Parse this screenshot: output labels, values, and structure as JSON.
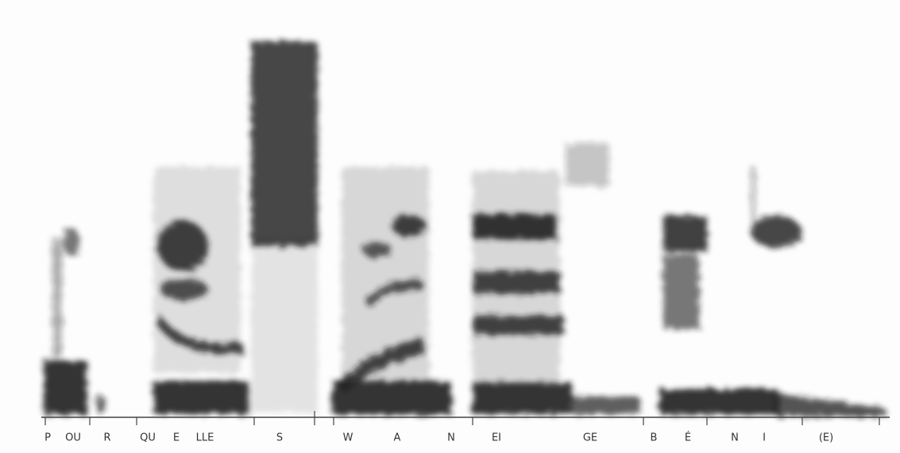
{
  "labels": [
    "P",
    "OU",
    "R",
    "QU",
    "E",
    "LLE",
    "S",
    "W",
    "A",
    "N",
    "EI",
    "GE",
    "B",
    "É",
    "N",
    "I",
    "(E)"
  ]
}
